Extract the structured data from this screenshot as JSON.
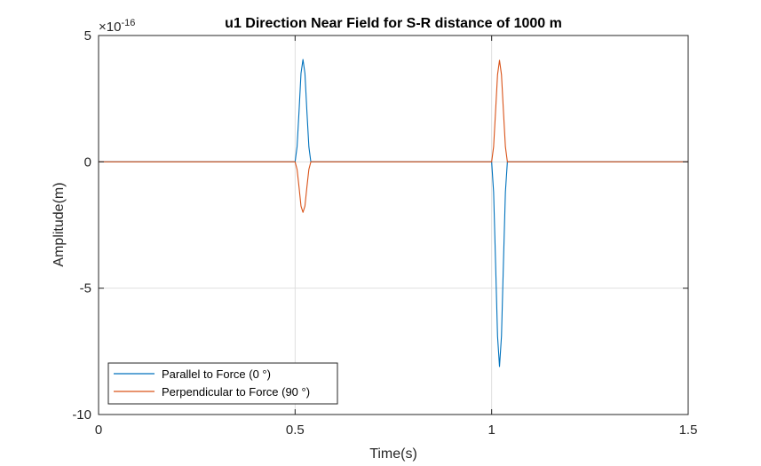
{
  "chart_data": {
    "type": "line",
    "title": "u1 Direction Near Field for S-R distance of 1000 m",
    "xlabel": "Time(s)",
    "ylabel": "Amplitude(m)",
    "xlim": [
      0,
      1.5
    ],
    "ylim": [
      -10,
      5
    ],
    "xticks": [
      0,
      0.5,
      1,
      1.5
    ],
    "xtick_labels": [
      "0",
      "0.5",
      "1",
      "1.5"
    ],
    "yticks": [
      -10,
      -5,
      0,
      5
    ],
    "ytick_labels": [
      "-10",
      "-5",
      "0",
      "5"
    ],
    "y_exponent_base": "×10",
    "y_exponent_power": "-16",
    "grid": true,
    "legend_position": "bottom-left",
    "series": [
      {
        "name": "Parallel to Force (0 °)",
        "color": "#0072BD",
        "x": [
          0,
          0.5,
          0.505,
          0.51,
          0.515,
          0.52,
          0.525,
          0.53,
          0.535,
          0.54,
          1.0,
          1.005,
          1.01,
          1.015,
          1.02,
          1.025,
          1.03,
          1.035,
          1.04,
          1.5
        ],
        "y": [
          0,
          0,
          0.6,
          2.0,
          3.5,
          4.05,
          3.5,
          2.0,
          0.6,
          0,
          0,
          -1.2,
          -4.0,
          -6.9,
          -8.1,
          -6.9,
          -4.0,
          -1.2,
          0,
          0
        ]
      },
      {
        "name": "Perpendicular to Force (90 °)",
        "color": "#D95319",
        "x": [
          0,
          0.5,
          0.505,
          0.51,
          0.515,
          0.52,
          0.525,
          0.53,
          0.535,
          0.54,
          1.0,
          1.005,
          1.01,
          1.015,
          1.02,
          1.025,
          1.03,
          1.035,
          1.04,
          1.5
        ],
        "y": [
          0,
          0,
          -0.3,
          -1.0,
          -1.75,
          -2.0,
          -1.75,
          -1.0,
          -0.3,
          0,
          0,
          0.6,
          2.0,
          3.45,
          4.02,
          3.45,
          2.0,
          0.6,
          0,
          0
        ]
      }
    ]
  }
}
